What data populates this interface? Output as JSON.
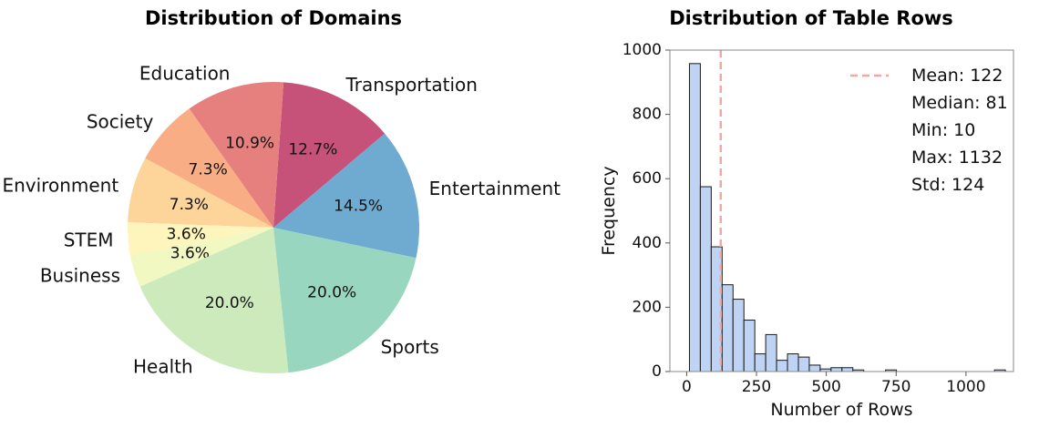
{
  "chart_data": [
    {
      "type": "pie",
      "title": "Distribution of Domains",
      "slices": [
        {
          "label": "Entertainment",
          "value": 14.5,
          "pct_label": "14.5%",
          "color": "#6fabd0"
        },
        {
          "label": "Transportation",
          "value": 12.7,
          "pct_label": "12.7%",
          "color": "#c6527a"
        },
        {
          "label": "Education",
          "value": 10.9,
          "pct_label": "10.9%",
          "color": "#e6807e"
        },
        {
          "label": "Society",
          "value": 7.3,
          "pct_label": "7.3%",
          "color": "#f9ad85"
        },
        {
          "label": "Environment",
          "value": 7.3,
          "pct_label": "7.3%",
          "color": "#fdd49a"
        },
        {
          "label": "STEM",
          "value": 3.6,
          "pct_label": "3.6%",
          "color": "#fdf5bb"
        },
        {
          "label": "Business",
          "value": 3.6,
          "pct_label": "3.6%",
          "color": "#f1f8c2"
        },
        {
          "label": "Health",
          "value": 20.0,
          "pct_label": "20.0%",
          "color": "#cdeabd"
        },
        {
          "label": "Sports",
          "value": 20.0,
          "pct_label": "20.0%",
          "color": "#99d6bf"
        }
      ]
    },
    {
      "type": "bar",
      "title": "Distribution of Table Rows",
      "xlabel": "Number of Rows",
      "ylabel": "Frequency",
      "xlim": [
        -60,
        1170
      ],
      "ylim": [
        0,
        1000
      ],
      "xticks": [
        0,
        250,
        500,
        750,
        1000
      ],
      "yticks": [
        0,
        200,
        400,
        600,
        800,
        1000
      ],
      "bin_width": 39,
      "bins_start": 10,
      "counts": [
        958,
        575,
        388,
        270,
        225,
        160,
        55,
        115,
        35,
        55,
        45,
        20,
        8,
        12,
        12,
        5,
        0,
        0,
        5,
        0,
        0,
        0,
        0,
        0,
        0,
        0,
        0,
        0,
        5
      ],
      "bar_color": "#bfd4f5",
      "mean_line": {
        "value": 122,
        "color": "#f4a6a0"
      },
      "legend": {
        "entries": [
          "Mean: 122",
          "Median: 81",
          "Min: 10",
          "Max: 1132",
          "Std: 124"
        ],
        "position": "top-right"
      }
    }
  ]
}
